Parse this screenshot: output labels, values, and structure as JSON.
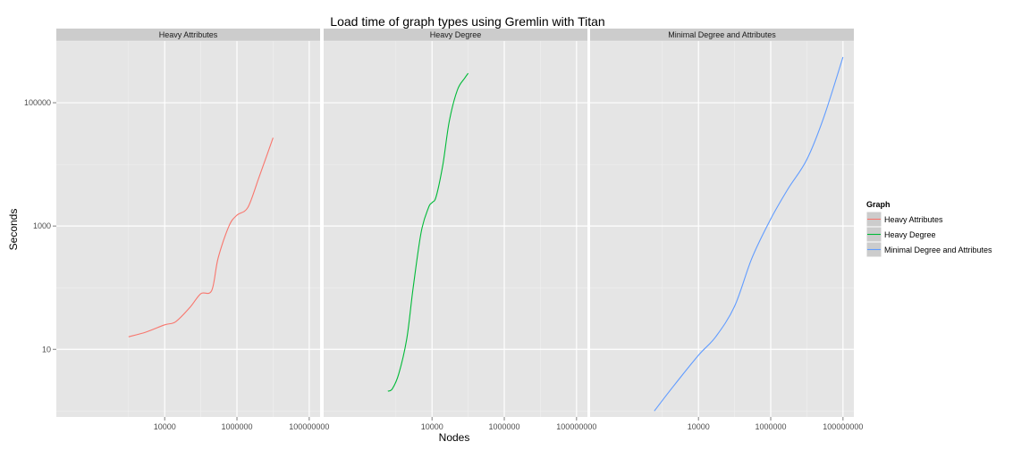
{
  "chart_data": {
    "type": "line",
    "title": "Load time of graph types using Gremlin with Titan",
    "xlabel": "Nodes",
    "ylabel": "Seconds",
    "x_scale": "log10",
    "y_scale": "log10",
    "xlim": [
      10,
      200000000
    ],
    "ylim": [
      0.8,
      1000000
    ],
    "x_ticks": [
      10000,
      1000000,
      100000000
    ],
    "x_tick_labels": [
      "10000",
      "1000000",
      "100000000"
    ],
    "y_ticks": [
      10,
      1000,
      100000
    ],
    "y_tick_labels": [
      "10",
      "1000",
      "100000"
    ],
    "grid": true,
    "legend": {
      "title": "Graph",
      "position": "right"
    },
    "panels": [
      "Heavy Attributes",
      "Heavy Degree",
      "Minimal Degree and Attributes"
    ],
    "series": [
      {
        "name": "Heavy Attributes",
        "color": "#F8766D",
        "panel": 0,
        "x": [
          1000,
          3000,
          10000,
          20000,
          50000,
          100000,
          200000,
          300000,
          600000,
          1000000,
          2000000,
          4000000,
          7000000,
          10000000
        ],
        "y": [
          16,
          19,
          25,
          28,
          48,
          80,
          90,
          300,
          1000,
          1500,
          2000,
          6000,
          15000,
          27000
        ]
      },
      {
        "name": "Heavy Degree",
        "color": "#00BA38",
        "panel": 1,
        "x": [
          600,
          800,
          1200,
          2000,
          3000,
          5000,
          8000,
          10000,
          13000,
          20000,
          30000,
          50000,
          80000,
          100000
        ],
        "y": [
          2.1,
          2.3,
          4,
          15,
          100,
          800,
          2000,
          2400,
          3000,
          10000,
          50000,
          160000,
          250000,
          300000
        ]
      },
      {
        "name": "Minimal Degree and Attributes",
        "color": "#619CFF",
        "panel": 2,
        "x": [
          600,
          2000,
          10000,
          30000,
          100000,
          300000,
          1000000,
          3000000,
          10000000,
          30000000,
          100000000
        ],
        "y": [
          1,
          2.5,
          8,
          16,
          50,
          300,
          1300,
          4000,
          12000,
          60000,
          550000
        ]
      }
    ]
  }
}
